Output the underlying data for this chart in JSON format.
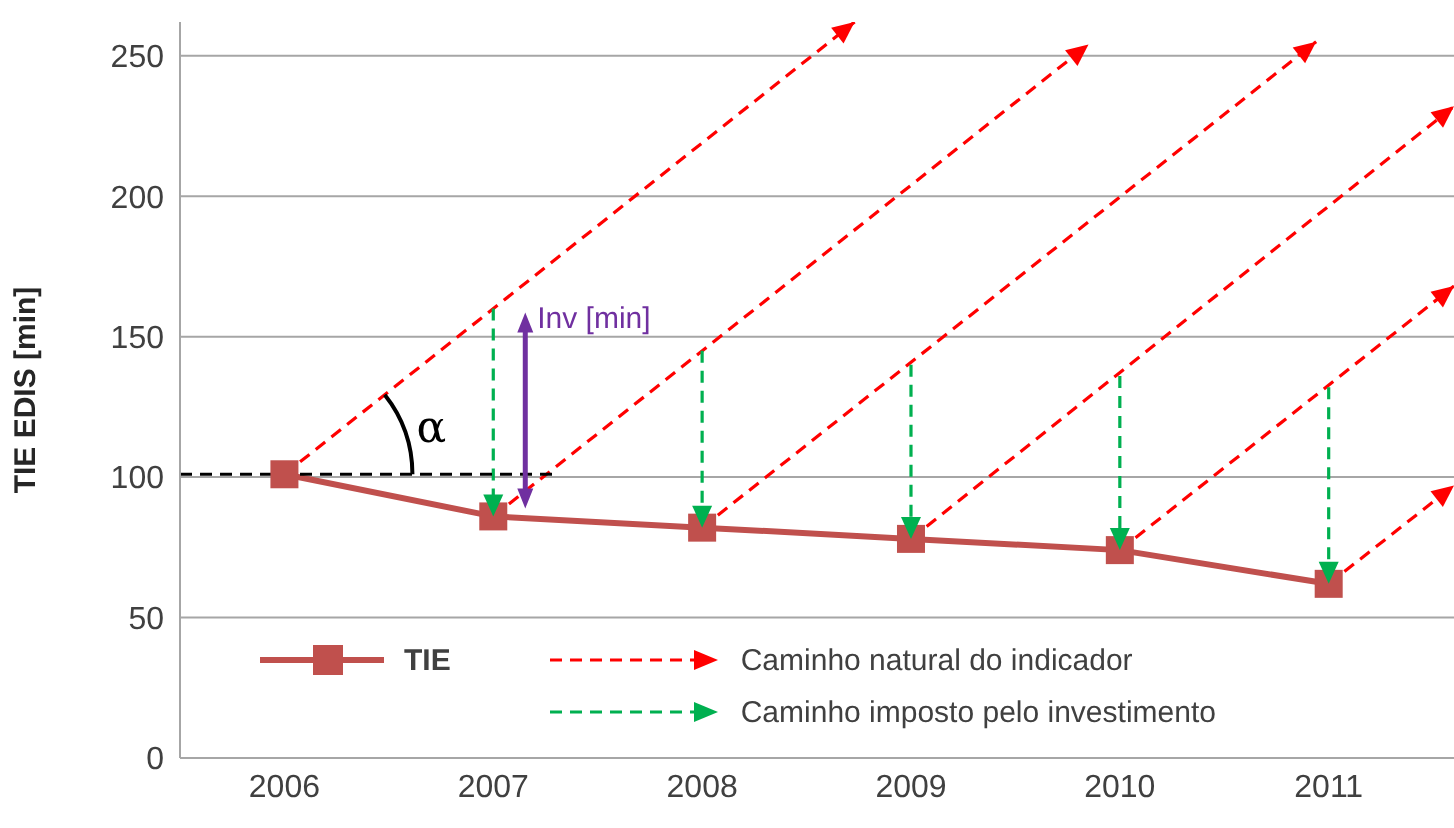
{
  "chart_data": {
    "type": "line",
    "ylabel": "TIE EDIS [min]",
    "xlim": [
      2005.5,
      2011.6
    ],
    "xticks": [
      2006,
      2007,
      2008,
      2009,
      2010,
      2011
    ],
    "ylim": [
      0,
      262
    ],
    "yticks": [
      0,
      50,
      100,
      150,
      200,
      250
    ],
    "grid": "y",
    "legend": "bottom left",
    "series": [
      {
        "name": "TIE",
        "color": "#c0504d",
        "marker": "square",
        "line_style": "solid",
        "x": [
          2006,
          2007,
          2008,
          2009,
          2010,
          2011
        ],
        "values": [
          101,
          86,
          82,
          78,
          74,
          62
        ]
      },
      {
        "name": "Caminho natural do indicador",
        "color": "#ff0000",
        "line_style": "dashed",
        "x": [
          2006,
          2008.73,
          null,
          2007,
          2009.85,
          null,
          2008,
          2010.94,
          null,
          2009,
          2011.6,
          null,
          2010,
          2011.6,
          null,
          2011,
          2011.6
        ],
        "values": [
          101,
          262,
          null,
          86,
          254,
          null,
          82,
          255,
          null,
          78,
          232,
          null,
          74,
          168,
          null,
          62,
          97
        ]
      },
      {
        "name": "Caminho imposto pelo investimento",
        "color": "#00b050",
        "line_style": "dashed",
        "x": [
          2007,
          2007,
          null,
          2008,
          2008,
          null,
          2009,
          2009,
          null,
          2010,
          2010,
          null,
          2011,
          2011
        ],
        "values": [
          160,
          86,
          null,
          145,
          82,
          null,
          140,
          78,
          null,
          136,
          74,
          null,
          132,
          62
        ]
      },
      {
        "color": "#000000",
        "line_style": "dashed",
        "x": [
          2005.5,
          2007.3
        ],
        "values": [
          101,
          101
        ]
      }
    ],
    "annotations": [
      "α",
      {
        "text": "Inv [min]",
        "x": 2007,
        "y": 160
      }
    ]
  }
}
